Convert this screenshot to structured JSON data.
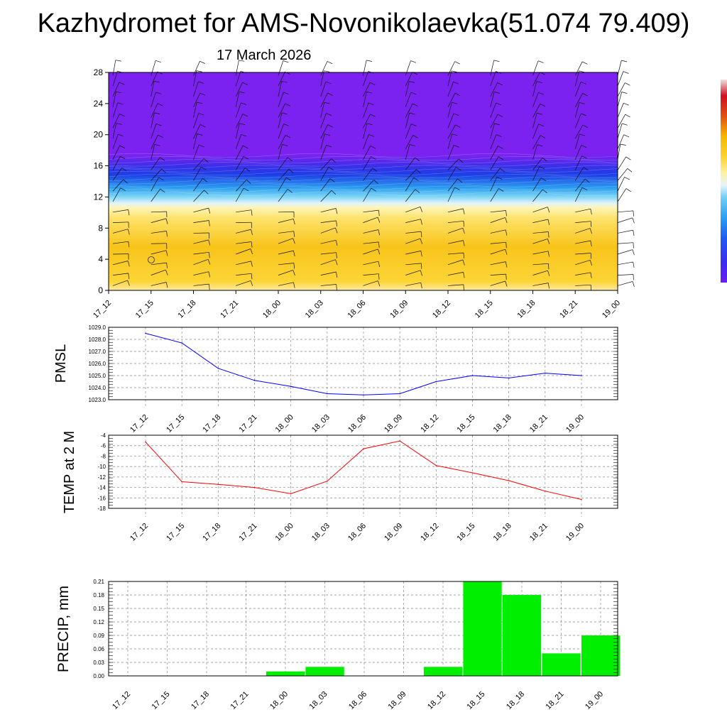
{
  "title": "Kazhydromet for AMS-Novonikolaevka(51.074 79.409)",
  "subtitle": "17 March 2026",
  "colors": {
    "upper": "#7b22f0",
    "lower": "#fcd22e",
    "pmsl_line": "#0000ff",
    "temp_line": "#ff0000",
    "precip_bar": "#00ee00",
    "grid": "#888888"
  },
  "chart_data": [
    {
      "id": "cross_section",
      "type": "heatmap",
      "title": "",
      "ylabel": "",
      "ylim": [
        0,
        28
      ],
      "yticks": [
        0,
        4,
        8,
        12,
        16,
        20,
        24,
        28
      ],
      "x_ticks": [
        "17_12",
        "17_15",
        "17_18",
        "17_21",
        "18_00",
        "18_03",
        "18_06",
        "18_09",
        "18_12",
        "18_15",
        "18_18",
        "18_21",
        "19_00"
      ],
      "description_values": {
        "purple_above_level": 17,
        "transition_levels": [
          11,
          17
        ]
      },
      "colorbar": [
        "#7b22f0",
        "#3a2ef0",
        "#1f5cf0",
        "#2a9ff0",
        "#6fd0f5",
        "#e6f4fb",
        "#fff1a0",
        "#fcd22e",
        "#f5c000",
        "#ffe8a0"
      ]
    },
    {
      "id": "pmsl",
      "type": "line",
      "ylabel": "PMSL",
      "ylim": [
        1023.0,
        1029.0
      ],
      "yticks": [
        "1023.0",
        "1024.0",
        "1025.0",
        "1026.0",
        "1027.0",
        "1028.0",
        "1029.0"
      ],
      "categories": [
        "17_12",
        "17_15",
        "17_18",
        "17_21",
        "18_00",
        "18_03",
        "18_06",
        "18_09",
        "18_12",
        "18_15",
        "18_18",
        "18_21",
        "19_00"
      ],
      "values": [
        1028.5,
        1027.7,
        1025.6,
        1024.6,
        1024.1,
        1023.5,
        1023.4,
        1023.5,
        1024.5,
        1025.0,
        1024.8,
        1025.2,
        1025.0
      ]
    },
    {
      "id": "temp",
      "type": "line",
      "ylabel": "TEMP at 2 M",
      "ylim": [
        -18,
        -4
      ],
      "yticks": [
        "-18",
        "-16",
        "-14",
        "-12",
        "-10",
        "-8",
        "-6",
        "-4"
      ],
      "categories": [
        "17_12",
        "17_15",
        "17_18",
        "17_21",
        "18_00",
        "18_03",
        "18_06",
        "18_09",
        "18_12",
        "18_15",
        "18_18",
        "18_21",
        "19_00"
      ],
      "values": [
        -5.3,
        -12.9,
        -13.4,
        -14.0,
        -15.2,
        -12.8,
        -6.6,
        -5.1,
        -9.8,
        -11.2,
        -12.7,
        -14.7,
        -16.3
      ]
    },
    {
      "id": "precip",
      "type": "bar",
      "ylabel": "PRECIP, mm",
      "ylim": [
        0,
        0.21
      ],
      "yticks": [
        "0.00",
        "0.03",
        "0.06",
        "0.09",
        "0.12",
        "0.15",
        "0.18",
        "0.21"
      ],
      "categories": [
        "17_12",
        "17_15",
        "17_18",
        "17_21",
        "18_00",
        "18_03",
        "18_06",
        "18_09",
        "18_12",
        "18_15",
        "18_18",
        "18_21",
        "19_00"
      ],
      "values": [
        0,
        0,
        0,
        0,
        0.01,
        0.02,
        0,
        0,
        0.02,
        0.21,
        0.18,
        0.05,
        0.09
      ]
    }
  ]
}
